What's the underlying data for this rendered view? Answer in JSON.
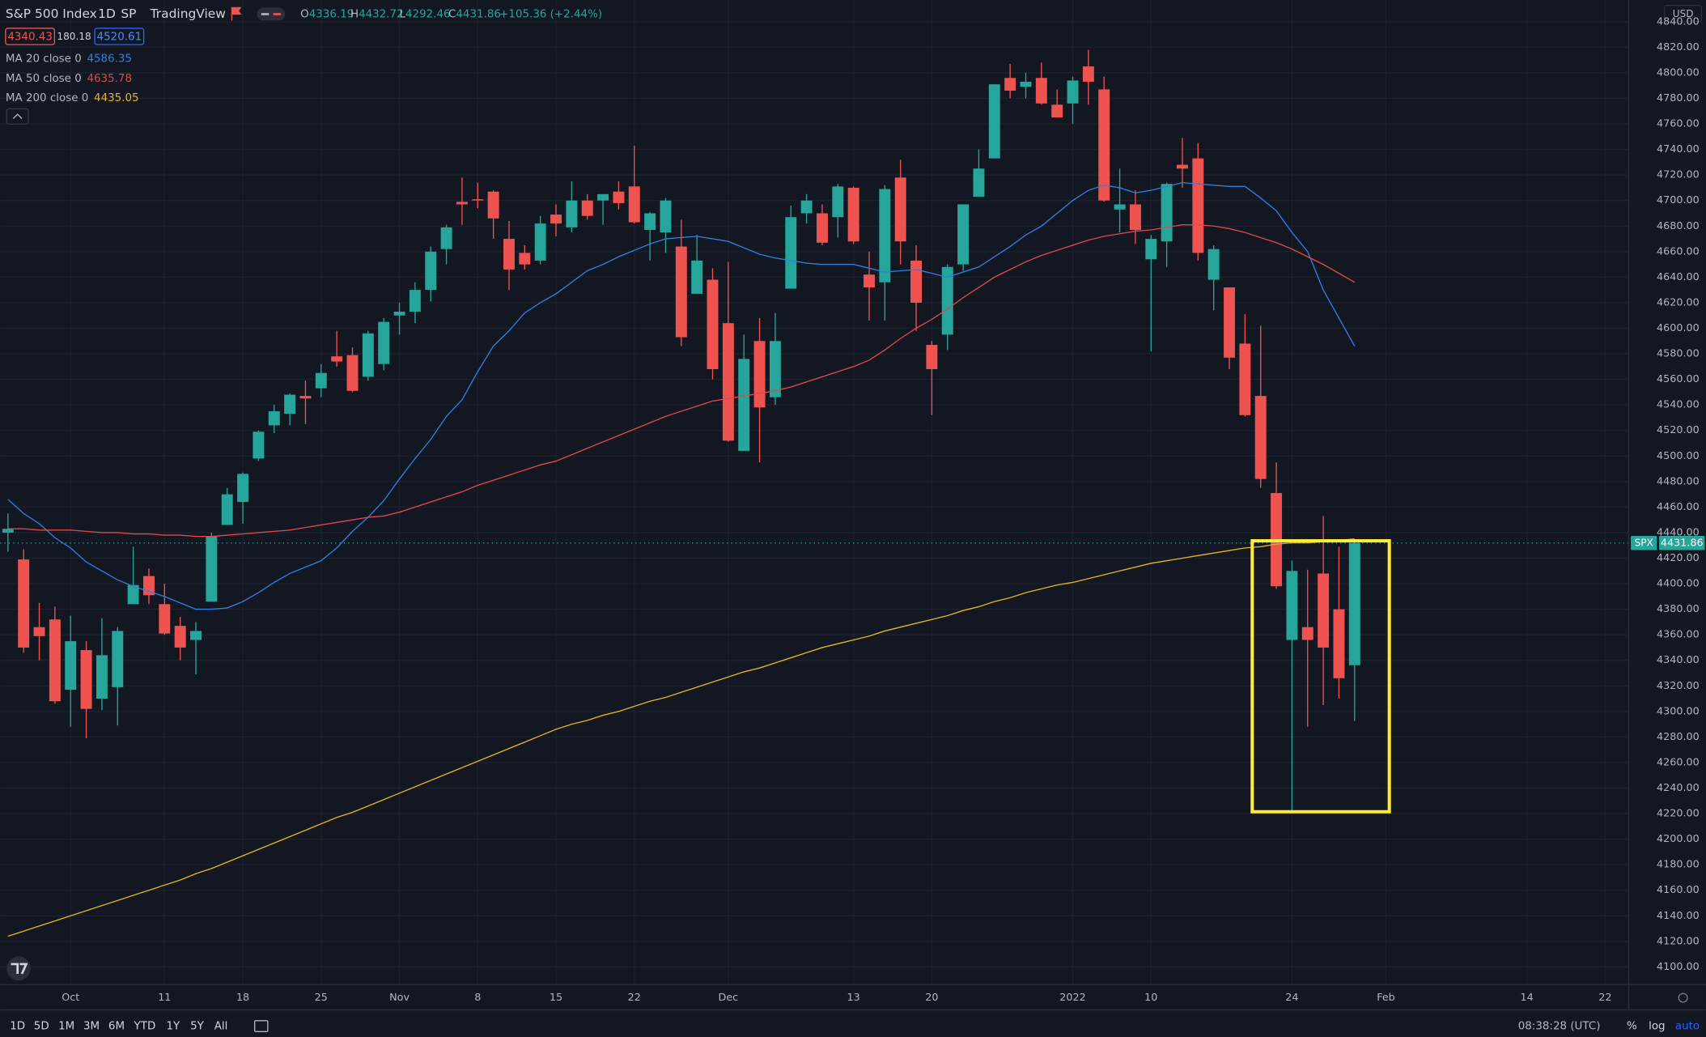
{
  "header": {
    "symbol": "S&P 500 Index",
    "interval": "1D",
    "exchange": "SP",
    "source": "TradingView",
    "ohlc_labels": [
      "O",
      "H",
      "L",
      "C"
    ],
    "change": "+105.36 (+2.44%)",
    "quote": {
      "bid": "4340.43",
      "spread": "180.18",
      "ask": "4520.61"
    },
    "currency": "USD"
  },
  "toolbar": {
    "ranges": [
      "1D",
      "5D",
      "1M",
      "3M",
      "6M",
      "YTD",
      "1Y",
      "5Y",
      "All"
    ],
    "clock": "08:38:28 (UTC)",
    "scale_options": [
      "%",
      "log",
      "auto"
    ]
  },
  "chart_data": {
    "type": "candlestick",
    "up_color": "#26a69a",
    "down_color": "#ef5350",
    "grid": true,
    "categories": [
      null,
      null,
      null,
      null,
      "Oct",
      null,
      null,
      null,
      null,
      null,
      "11",
      null,
      null,
      null,
      null,
      "18",
      null,
      null,
      null,
      null,
      "25",
      null,
      null,
      null,
      null,
      "Nov",
      null,
      null,
      null,
      null,
      "8",
      null,
      null,
      null,
      null,
      "15",
      null,
      null,
      null,
      null,
      "22",
      null,
      null,
      null,
      null,
      null,
      "Dec",
      null,
      null,
      null,
      null,
      null,
      null,
      null,
      "13",
      null,
      null,
      null,
      null,
      "20",
      null,
      null,
      null,
      null,
      null,
      null,
      null,
      null,
      "2022",
      null,
      null,
      null,
      null,
      "10",
      null,
      null,
      null,
      null,
      null,
      null,
      null,
      null,
      "24",
      null,
      null,
      null,
      null,
      null,
      "Feb",
      null,
      null,
      null,
      null,
      null,
      null,
      null,
      null,
      "14",
      null,
      null,
      null,
      null,
      "22",
      null
    ],
    "open": [
      4440,
      4419,
      4366,
      4372,
      4317,
      4348,
      4310,
      4319,
      4384,
      4406,
      4384,
      4367,
      4356,
      4386,
      4446,
      4464,
      4498,
      4524,
      4533,
      4547,
      4553,
      4578,
      4579,
      4562,
      4572,
      4610,
      4613,
      4630,
      4662,
      4699,
      4701,
      4707,
      4670,
      4659,
      4653,
      4689,
      4679,
      4700,
      4700,
      4707,
      4711,
      4677,
      4675,
      4664,
      4627,
      4638,
      4604,
      4504,
      4590,
      4546,
      4631,
      4690,
      4690,
      4687,
      4710,
      4642,
      4636,
      4718,
      4653,
      4587,
      4595,
      4650,
      4703,
      4733,
      4796,
      4789,
      4796,
      4775,
      4776,
      4805,
      4787,
      4693,
      4697,
      4654,
      4668,
      4728,
      4733,
      4638,
      4632,
      4588,
      4547,
      4471,
      4356,
      4366,
      4408,
      4380,
      4336.19,
      null,
      null,
      null,
      null,
      null,
      null,
      null,
      null,
      null,
      null,
      null,
      null,
      null,
      null,
      null,
      null,
      null
    ],
    "high": [
      4455,
      4427,
      4385,
      4382,
      4375,
      4355,
      4373,
      4366,
      4429,
      4412,
      4400,
      4374,
      4370,
      4440,
      4475,
      4487,
      4520,
      4540,
      4549,
      4559,
      4572,
      4598,
      4585,
      4598,
      4608,
      4620,
      4636,
      4664,
      4681,
      4718,
      4714,
      4708,
      4684,
      4665,
      4688,
      4697,
      4715,
      4705,
      4705,
      4715,
      4743,
      4691,
      4702,
      4685,
      4673,
      4647,
      4652,
      4595,
      4608,
      4612,
      4696,
      4705,
      4697,
      4713,
      4711,
      4660,
      4712,
      4732,
      4665,
      4590,
      4650,
      4697,
      4740,
      4791,
      4807,
      4800,
      4808,
      4787,
      4797,
      4818,
      4797,
      4725,
      4708,
      4673,
      4714,
      4749,
      4745,
      4665,
      4632,
      4611,
      4602,
      4495,
      4418,
      4411,
      4453,
      4429,
      4432.72,
      null,
      null,
      null,
      null,
      null,
      null,
      null,
      null,
      null,
      null,
      null,
      null,
      null,
      null,
      null,
      null,
      null
    ],
    "low": [
      4425,
      4346,
      4340,
      4306,
      4288,
      4279,
      4301,
      4289,
      4384,
      4384,
      4360,
      4340,
      4329,
      4386,
      4446,
      4447,
      4496,
      4518,
      4524,
      4525,
      4546,
      4570,
      4550,
      4559,
      4567,
      4595,
      4604,
      4621,
      4650,
      4681,
      4694,
      4670,
      4630,
      4646,
      4650,
      4672,
      4675,
      4685,
      4681,
      4693,
      4682,
      4653,
      4659,
      4586,
      4627,
      4560,
      4511,
      4504,
      4495,
      4540,
      4631,
      4682,
      4665,
      4671,
      4666,
      4606,
      4606,
      4650,
      4598,
      4532,
      4583,
      4645,
      4703,
      4733,
      4780,
      4780,
      4775,
      4765,
      4760,
      4775,
      4699,
      4675,
      4666,
      4582,
      4648,
      4710,
      4653,
      4614,
      4568,
      4531,
      4475,
      4396,
      4222,
      4288,
      4305,
      4310,
      4292.46,
      null,
      null,
      null,
      null,
      null,
      null,
      null,
      null,
      null,
      null,
      null,
      null,
      null,
      null,
      null,
      null,
      null
    ],
    "close": [
      4443,
      4350,
      4359,
      4308,
      4355,
      4302,
      4344,
      4363,
      4399,
      4391,
      4361,
      4350,
      4363,
      4437,
      4470,
      4486,
      4519,
      4535,
      4548,
      4545,
      4565,
      4574,
      4551,
      4596,
      4605,
      4613,
      4630,
      4660,
      4679,
      4697,
      4700,
      4686,
      4646,
      4650,
      4682,
      4682,
      4700,
      4688,
      4705,
      4698,
      4683,
      4690,
      4700,
      4593,
      4653,
      4568,
      4512,
      4576,
      4538,
      4590,
      4687,
      4700,
      4667,
      4711,
      4668,
      4632,
      4709,
      4668,
      4620,
      4568,
      4648,
      4697,
      4725,
      4791,
      4786,
      4793,
      4776,
      4765,
      4794,
      4793,
      4700,
      4697,
      4677,
      4670,
      4713,
      4725,
      4659,
      4662,
      4577,
      4532,
      4482,
      4398,
      4410,
      4356,
      4350,
      4326,
      4431.86,
      null,
      null,
      null,
      null,
      null,
      null,
      null,
      null,
      null,
      null,
      null,
      null,
      null,
      null,
      null,
      null,
      null
    ],
    "lines": [
      {
        "name": "MA 20 close 0",
        "color": "#2f7fe0",
        "last": 4586.35,
        "values": [
          4466,
          4455,
          4447,
          4436,
          4428,
          4417,
          4410,
          4403,
          4398,
          4394,
          4390,
          4385,
          4380,
          4380,
          4381,
          4386,
          4393,
          4401,
          4408,
          4413,
          4418,
          4428,
          4441,
          4452,
          4465,
          4482,
          4498,
          4513,
          4531,
          4544,
          4566,
          4586,
          4598,
          4612,
          4620,
          4627,
          4636,
          4645,
          4650,
          4656,
          4661,
          4666,
          4670,
          4671,
          4672,
          4670,
          4668,
          4663,
          4658,
          4655,
          4653,
          4651,
          4650,
          4650,
          4650,
          4647,
          4644,
          4645,
          4646,
          4643,
          4640,
          4644,
          4648,
          4656,
          4664,
          4673,
          4680,
          4690,
          4700,
          4708,
          4712,
          4710,
          4706,
          4708,
          4711,
          4714,
          4713,
          4712,
          4711,
          4711,
          4702,
          4692,
          4675,
          4660,
          4630,
          4608,
          4586,
          null,
          null,
          null,
          null,
          null,
          null,
          null,
          null,
          null,
          null,
          null,
          null,
          null,
          null,
          null,
          null,
          null
        ]
      },
      {
        "name": "MA 50 close 0",
        "color": "#e0474c",
        "last": 4635.78,
        "values": [
          4443,
          4443,
          4442,
          4442,
          4442,
          4441,
          4440,
          4440,
          4439,
          4439,
          4438,
          4438,
          4437,
          4437,
          4438,
          4439,
          4440,
          4441,
          4442,
          4444,
          4446,
          4448,
          4450,
          4452,
          4453,
          4456,
          4460,
          4464,
          4468,
          4472,
          4477,
          4481,
          4485,
          4489,
          4493,
          4496,
          4501,
          4506,
          4511,
          4516,
          4521,
          4526,
          4531,
          4535,
          4539,
          4543,
          4545,
          4547,
          4549,
          4551,
          4554,
          4558,
          4562,
          4566,
          4570,
          4575,
          4583,
          4592,
          4600,
          4607,
          4615,
          4624,
          4632,
          4640,
          4646,
          4652,
          4657,
          4661,
          4665,
          4669,
          4672,
          4674,
          4676,
          4677,
          4679,
          4681,
          4681,
          4680,
          4678,
          4675,
          4671,
          4667,
          4662,
          4656,
          4650,
          4643,
          4636,
          null,
          null,
          null,
          null,
          null,
          null,
          null,
          null,
          null,
          null,
          null,
          null,
          null,
          null,
          null,
          null,
          null
        ]
      },
      {
        "name": "MA 200 close 0",
        "color": "#e6b422",
        "last": 4435.05,
        "values": [
          4124,
          4128,
          4132,
          4136,
          4140,
          4144,
          4148,
          4152,
          4156,
          4160,
          4164,
          4168,
          4173,
          4177,
          4182,
          4187,
          4192,
          4197,
          4202,
          4207,
          4212,
          4217,
          4221,
          4226,
          4231,
          4236,
          4241,
          4246,
          4251,
          4256,
          4261,
          4266,
          4271,
          4276,
          4281,
          4286,
          4290,
          4293,
          4297,
          4300,
          4304,
          4308,
          4311,
          4315,
          4319,
          4323,
          4327,
          4331,
          4334,
          4338,
          4342,
          4346,
          4350,
          4353,
          4356,
          4359,
          4363,
          4366,
          4369,
          4372,
          4375,
          4379,
          4382,
          4386,
          4389,
          4393,
          4396,
          4399,
          4401,
          4404,
          4407,
          4410,
          4413,
          4416,
          4418,
          4420,
          4422,
          4424,
          4426,
          4428,
          4429,
          4431,
          4432,
          4432,
          4433,
          4434,
          4435,
          null,
          null,
          null,
          null,
          null,
          null,
          null,
          null,
          null,
          null,
          null,
          null,
          null,
          null,
          null,
          null,
          null
        ]
      }
    ],
    "last_price_label": "SPX",
    "ylim": [
      4086,
      4857
    ],
    "yticks": [
      {
        "value": 4100,
        "label": "4100.00"
      },
      {
        "value": 4120,
        "label": "4120.00"
      },
      {
        "value": 4140,
        "label": "4140.00"
      },
      {
        "value": 4160,
        "label": "4160.00"
      },
      {
        "value": 4180,
        "label": "4180.00"
      },
      {
        "value": 4200,
        "label": "4200.00"
      },
      {
        "value": 4220,
        "label": "4220.00"
      },
      {
        "value": 4240,
        "label": "4240.00"
      },
      {
        "value": 4260,
        "label": "4260.00"
      },
      {
        "value": 4280,
        "label": "4280.00"
      },
      {
        "value": 4300,
        "label": "4300.00"
      },
      {
        "value": 4320,
        "label": "4320.00"
      },
      {
        "value": 4340,
        "label": "4340.00"
      },
      {
        "value": 4360,
        "label": "4360.00"
      },
      {
        "value": 4380,
        "label": "4380.00"
      },
      {
        "value": 4400,
        "label": "4400.00"
      },
      {
        "value": 4420,
        "label": "4420.00"
      },
      {
        "value": 4440,
        "label": "4440.00"
      },
      {
        "value": 4460,
        "label": "4460.00"
      },
      {
        "value": 4480,
        "label": "4480.00"
      },
      {
        "value": 4500,
        "label": "4500.00"
      },
      {
        "value": 4520,
        "label": "4520.00"
      },
      {
        "value": 4540,
        "label": "4540.00"
      },
      {
        "value": 4560,
        "label": "4560.00"
      },
      {
        "value": 4580,
        "label": "4580.00"
      },
      {
        "value": 4600,
        "label": "4600.00"
      },
      {
        "value": 4620,
        "label": "4620.00"
      },
      {
        "value": 4640,
        "label": "4640.00"
      },
      {
        "value": 4660,
        "label": "4660.00"
      },
      {
        "value": 4680,
        "label": "4680.00"
      },
      {
        "value": 4700,
        "label": "4700.00"
      },
      {
        "value": 4720,
        "label": "4720.00"
      },
      {
        "value": 4740,
        "label": "4740.00"
      },
      {
        "value": 4760,
        "label": "4760.00"
      },
      {
        "value": 4780,
        "label": "4780.00"
      },
      {
        "value": 4800,
        "label": "4800.00"
      },
      {
        "value": 4820,
        "label": "4820.00"
      },
      {
        "value": 4840,
        "label": "4840.00"
      }
    ]
  }
}
